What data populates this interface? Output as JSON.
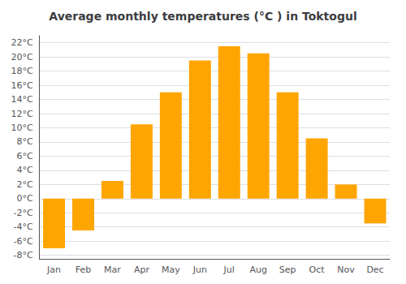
{
  "chart_data": {
    "type": "bar",
    "title": "Average monthly temperatures (°C ) in Toktogul",
    "categories": [
      "Jan",
      "Feb",
      "Mar",
      "Apr",
      "May",
      "Jun",
      "Jul",
      "Aug",
      "Sep",
      "Oct",
      "Nov",
      "Dec"
    ],
    "values": [
      -7.0,
      -4.5,
      2.5,
      10.5,
      15.0,
      19.5,
      21.5,
      20.5,
      15.0,
      8.5,
      2.0,
      -3.5
    ],
    "color": "#FFA500",
    "ylim": [
      -8.5,
      23
    ],
    "yticks": [
      {
        "value": -8,
        "label": "-8°C"
      },
      {
        "value": -6,
        "label": "-6°C"
      },
      {
        "value": -4,
        "label": "-4°C"
      },
      {
        "value": -2,
        "label": "-2°C"
      },
      {
        "value": 0,
        "label": "0°C"
      },
      {
        "value": 2,
        "label": "2°C"
      },
      {
        "value": 4,
        "label": "4°C"
      },
      {
        "value": 6,
        "label": "6°C"
      },
      {
        "value": 8,
        "label": "8°C"
      },
      {
        "value": 10,
        "label": "10°C"
      },
      {
        "value": 12,
        "label": "12°C"
      },
      {
        "value": 14,
        "label": "14°C"
      },
      {
        "value": 16,
        "label": "16°C"
      },
      {
        "value": 18,
        "label": "18°C"
      },
      {
        "value": 20,
        "label": "20°C"
      },
      {
        "value": 22,
        "label": "22°C"
      }
    ],
    "grid": true
  }
}
